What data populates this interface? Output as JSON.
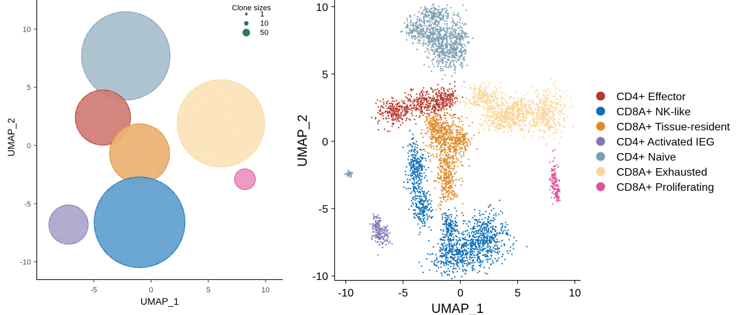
{
  "chart_data": [
    {
      "type": "scatter",
      "subtype": "packed-bubble",
      "title": "",
      "xlabel": "UMAP_1",
      "ylabel": "UMAP_2",
      "xlim": [
        -10,
        11.5
      ],
      "ylim": [
        -11.5,
        12.5
      ],
      "xticks": [
        -5,
        0,
        5,
        10
      ],
      "yticks": [
        -10,
        -5,
        0,
        5,
        10
      ],
      "grid": false,
      "size_legend": {
        "title": "Clone sizes",
        "position": "top-right",
        "entries": [
          {
            "label": "1",
            "value": 1
          },
          {
            "label": "10",
            "value": 10
          },
          {
            "label": "50",
            "value": 50
          }
        ]
      },
      "clusters": [
        {
          "name": "CD4+ Naive",
          "color": "#7b9fb2",
          "center": [
            -2.2,
            7.7
          ],
          "radius": 3.9
        },
        {
          "name": "CD4+ Effector",
          "color": "#b9382c",
          "center": [
            -4.2,
            2.4
          ],
          "radius": 2.45
        },
        {
          "name": "CD8A+ Tissue-resident",
          "color": "#e08a2a",
          "center": [
            -1.0,
            -0.7
          ],
          "radius": 2.65
        },
        {
          "name": "CD8A+ Exhausted",
          "color": "#fad596",
          "center": [
            6.1,
            1.9
          ],
          "radius": 3.85
        },
        {
          "name": "CD8A+ Proliferating",
          "color": "#e0539a",
          "center": [
            8.2,
            -2.9
          ],
          "radius": 0.95
        },
        {
          "name": "CD8A+ NK-like",
          "color": "#0f70b8",
          "center": [
            -1.0,
            -6.6
          ],
          "radius": 4.0
        },
        {
          "name": "CD4+ Activated IEG",
          "color": "#8077b0",
          "center": [
            -7.2,
            -6.8
          ],
          "radius": 1.75
        }
      ]
    },
    {
      "type": "scatter",
      "title": "",
      "xlabel": "UMAP_1",
      "ylabel": "UMAP_2",
      "xlim": [
        -11,
        10.5
      ],
      "ylim": [
        -10.3,
        10.5
      ],
      "xticks": [
        -10,
        -5,
        0,
        5,
        10
      ],
      "yticks": [
        -10,
        -5,
        0,
        5,
        10
      ],
      "grid": false,
      "legend": {
        "position": "right"
      },
      "series": [
        {
          "name": "CD4+ Effector",
          "color": "#b9382c",
          "regions": [
            [
              -5.7,
              2.2,
              1.4,
              0.85
            ],
            [
              -3.1,
              2.8,
              1.9,
              0.85
            ],
            [
              -1.4,
              3.3,
              0.9,
              0.8
            ]
          ]
        },
        {
          "name": "CD8A+ NK-like",
          "color": "#0f70b8",
          "regions": [
            [
              -3.9,
              -2.1,
              0.7,
              2.1
            ],
            [
              -3.3,
              -5.0,
              0.8,
              1.2
            ],
            [
              -0.5,
              -8.3,
              1.9,
              1.3
            ],
            [
              2.1,
              -7.3,
              1.9,
              1.6
            ],
            [
              -1.0,
              -6.3,
              0.6,
              1.0
            ]
          ]
        },
        {
          "name": "CD8A+ Tissue-resident",
          "color": "#e08a2a",
          "regions": [
            [
              -1.2,
              0.3,
              1.6,
              1.6
            ],
            [
              -1.1,
              -2.6,
              0.9,
              1.9
            ],
            [
              -2.4,
              1.2,
              0.6,
              0.9
            ],
            [
              0.2,
              0.1,
              0.5,
              0.7
            ]
          ]
        },
        {
          "name": "CD4+ Activated IEG",
          "color": "#8077b0",
          "regions": [
            [
              -6.9,
              -7.0,
              0.75,
              0.7
            ],
            [
              -7.3,
              -6.1,
              0.35,
              0.6
            ]
          ]
        },
        {
          "name": "CD4+ Naive",
          "color": "#7b9fb2",
          "regions": [
            [
              -3.9,
              8.3,
              0.9,
              0.9
            ],
            [
              -2.4,
              8.0,
              0.9,
              1.2
            ],
            [
              -1.6,
              6.9,
              1.0,
              1.5
            ],
            [
              -0.3,
              7.1,
              0.9,
              1.9
            ],
            [
              -2.3,
              9.4,
              1.2,
              0.6
            ],
            [
              -9.7,
              -2.4,
              0.25,
              0.2
            ]
          ]
        },
        {
          "name": "CD8A+ Exhausted",
          "color": "#fad596",
          "regions": [
            [
              2.0,
              3.2,
              1.7,
              0.85
            ],
            [
              3.6,
              1.8,
              1.6,
              1.0
            ],
            [
              5.0,
              2.2,
              1.2,
              0.9
            ],
            [
              7.4,
              2.1,
              1.6,
              1.5
            ]
          ]
        },
        {
          "name": "CD8A+ Proliferating",
          "color": "#e0539a",
          "regions": [
            [
              8.2,
              -2.8,
              0.35,
              1.3
            ],
            [
              8.5,
              -3.9,
              0.2,
              0.6
            ]
          ]
        }
      ]
    }
  ]
}
